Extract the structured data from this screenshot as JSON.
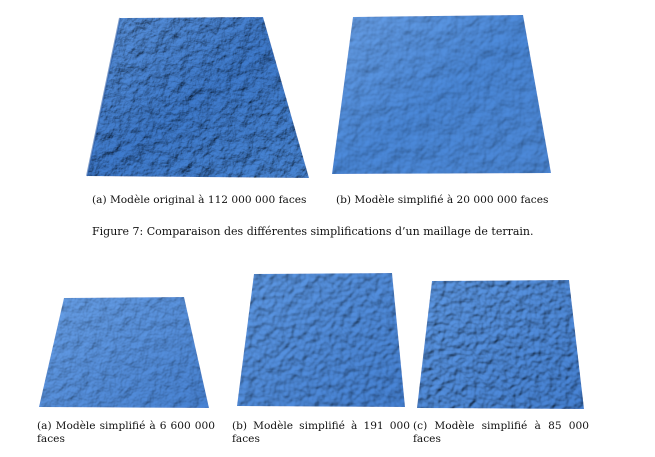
{
  "figure7": {
    "panel_a_caption": "(a) Modèle original à 112 000 000 faces",
    "panel_b_caption": "(b) Modèle simplifié à 20 000 000 faces",
    "caption": "Figure 7: Comparaison des différentes simplifications d’un maillage de terrain."
  },
  "figure8": {
    "panel_a_caption": "(a) Modèle simplifié à 6 600 000 faces",
    "panel_b_caption": "(b) Modèle simplifié à 191 000 faces",
    "panel_c_caption": "(c) Modèle simplifié à 85 000 faces"
  },
  "colors": {
    "terrain_base": "#4a88d8",
    "terrain_light": "#6fa4ea",
    "terrain_dark": "#2f65b0"
  }
}
